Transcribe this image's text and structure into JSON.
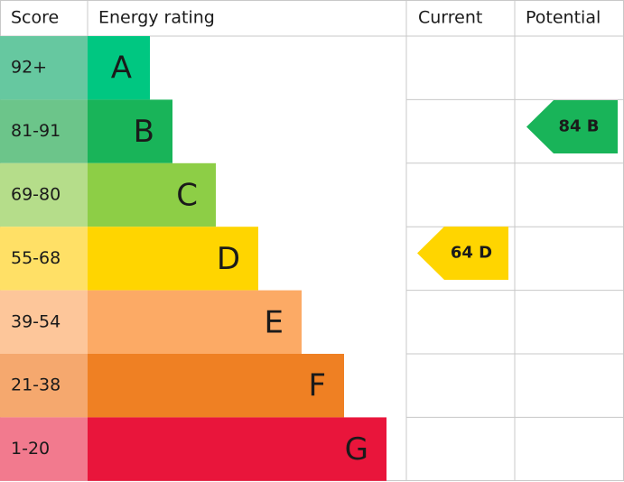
{
  "headers": [
    "Score",
    "Energy rating",
    "Current",
    "Potential"
  ],
  "bands": [
    {
      "score": "92+",
      "letter": "A",
      "score_color": "#66c8a0",
      "color": "#00c781"
    },
    {
      "score": "81-91",
      "letter": "B",
      "score_color": "#6cc58a",
      "color": "#19b459"
    },
    {
      "score": "69-80",
      "letter": "C",
      "score_color": "#b5dd8a",
      "color": "#8dce46"
    },
    {
      "score": "55-68",
      "letter": "D",
      "score_color": "#ffe066",
      "color": "#ffd500"
    },
    {
      "score": "39-54",
      "letter": "E",
      "score_color": "#fdc69a",
      "color": "#fcaa65"
    },
    {
      "score": "21-38",
      "letter": "F",
      "score_color": "#f5a86e",
      "color": "#ef8023"
    },
    {
      "score": "1-20",
      "letter": "G",
      "score_color": "#f27a8e",
      "color": "#e9153b"
    }
  ],
  "current": {
    "label": "64 D",
    "color": "#ffd500"
  },
  "potential": {
    "label": "84 B",
    "color": "#19b459"
  }
}
